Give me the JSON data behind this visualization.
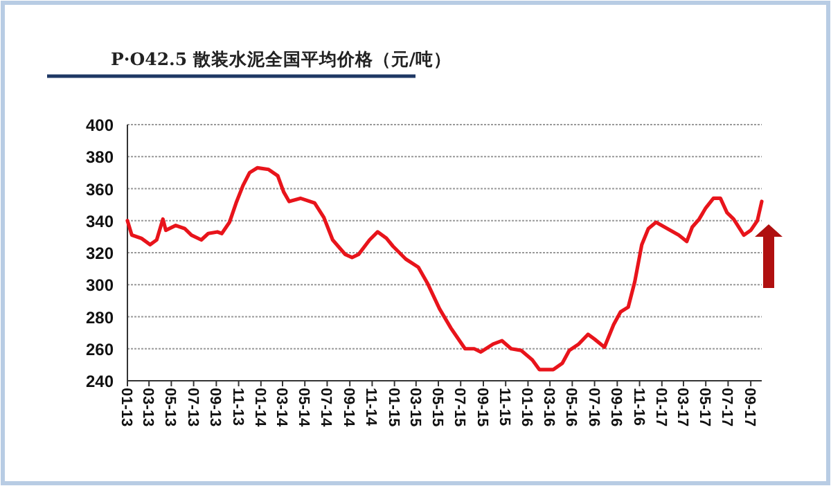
{
  "chart_data": {
    "type": "line",
    "title": "P·O42.5 散装水泥全国平均价格（元/吨）",
    "x": [
      "2013-01-01",
      "2013-01-13",
      "2013-02-08",
      "2013-03-04",
      "2013-03-22",
      "2013-04-08",
      "2013-04-16",
      "2013-05-13",
      "2013-06-07",
      "2013-06-25",
      "2013-07-22",
      "2013-08-10",
      "2013-09-04",
      "2013-09-16",
      "2013-10-07",
      "2013-10-25",
      "2013-11-13",
      "2013-12-01",
      "2013-12-22",
      "2014-01-22",
      "2014-02-16",
      "2014-03-04",
      "2014-03-19",
      "2014-04-19",
      "2014-05-28",
      "2014-06-22",
      "2014-07-16",
      "2014-08-19",
      "2014-09-07",
      "2014-09-25",
      "2014-10-25",
      "2014-11-16",
      "2014-12-10",
      "2014-12-28",
      "2015-02-01",
      "2015-03-07",
      "2015-04-01",
      "2015-05-04",
      "2015-06-04",
      "2015-07-13",
      "2015-08-07",
      "2015-08-25",
      "2015-09-28",
      "2015-10-22",
      "2015-11-16",
      "2015-12-13",
      "2016-01-13",
      "2016-02-01",
      "2016-03-10",
      "2016-04-04",
      "2016-04-23",
      "2016-05-19",
      "2016-06-13",
      "2016-07-01",
      "2016-07-28",
      "2016-08-22",
      "2016-09-10",
      "2016-10-01",
      "2016-10-19",
      "2016-11-07",
      "2016-11-25",
      "2016-12-16",
      "2017-01-16",
      "2017-02-16",
      "2017-03-10",
      "2017-03-25",
      "2017-04-13",
      "2017-05-01",
      "2017-05-22",
      "2017-06-10",
      "2017-06-28",
      "2017-07-16",
      "2017-08-13",
      "2017-09-01",
      "2017-09-19",
      "2017-10-01"
    ],
    "series": [
      {
        "color": "#e8141b",
        "values": [
          340,
          331,
          329,
          325,
          328,
          341,
          334,
          337,
          335,
          331,
          328,
          332,
          333,
          332,
          339,
          351,
          362,
          370,
          373,
          372,
          368,
          358,
          352,
          354,
          351,
          342,
          328,
          319,
          317,
          319,
          328,
          333,
          329,
          324,
          316,
          311,
          301,
          285,
          273,
          260,
          260,
          258,
          263,
          265,
          260,
          259,
          253,
          247,
          247,
          251,
          259,
          263,
          269,
          266,
          261,
          275,
          283,
          286,
          302,
          325,
          335,
          339,
          335,
          331,
          327,
          336,
          341,
          348,
          354,
          354,
          345,
          341,
          331,
          334,
          340,
          352
        ]
      }
    ],
    "xlim": [
      "2013-01-01",
      "2017-10-01"
    ],
    "ylim": [
      240,
      400
    ],
    "yticks": [
      240,
      260,
      280,
      300,
      320,
      340,
      360,
      380,
      400
    ],
    "xticks": [
      {
        "value": "2013-01-01",
        "label": "01-13"
      },
      {
        "value": "2013-03-01",
        "label": "03-13"
      },
      {
        "value": "2013-05-01",
        "label": "05-13"
      },
      {
        "value": "2013-07-01",
        "label": "07-13"
      },
      {
        "value": "2013-09-01",
        "label": "09-13"
      },
      {
        "value": "2013-11-01",
        "label": "11-13"
      },
      {
        "value": "2014-01-01",
        "label": "01-14"
      },
      {
        "value": "2014-03-01",
        "label": "03-14"
      },
      {
        "value": "2014-05-01",
        "label": "05-14"
      },
      {
        "value": "2014-07-01",
        "label": "07-14"
      },
      {
        "value": "2014-09-01",
        "label": "09-14"
      },
      {
        "value": "2014-11-01",
        "label": "11-14"
      },
      {
        "value": "2015-01-01",
        "label": "01-15"
      },
      {
        "value": "2015-03-01",
        "label": "03-15"
      },
      {
        "value": "2015-05-01",
        "label": "05-15"
      },
      {
        "value": "2015-07-01",
        "label": "07-15"
      },
      {
        "value": "2015-09-01",
        "label": "09-15"
      },
      {
        "value": "2015-11-01",
        "label": "11-15"
      },
      {
        "value": "2016-01-01",
        "label": "01-16"
      },
      {
        "value": "2016-03-01",
        "label": "03-16"
      },
      {
        "value": "2016-05-01",
        "label": "05-16"
      },
      {
        "value": "2016-07-01",
        "label": "07-16"
      },
      {
        "value": "2016-09-01",
        "label": "09-16"
      },
      {
        "value": "2016-11-01",
        "label": "11-16"
      },
      {
        "value": "2017-01-01",
        "label": "01-17"
      },
      {
        "value": "2017-03-01",
        "label": "03-17"
      },
      {
        "value": "2017-05-01",
        "label": "05-17"
      },
      {
        "value": "2017-07-01",
        "label": "07-17"
      },
      {
        "value": "2017-09-01",
        "label": "09-17"
      }
    ],
    "grid": "y",
    "marker": "none",
    "line_style": "solid"
  }
}
